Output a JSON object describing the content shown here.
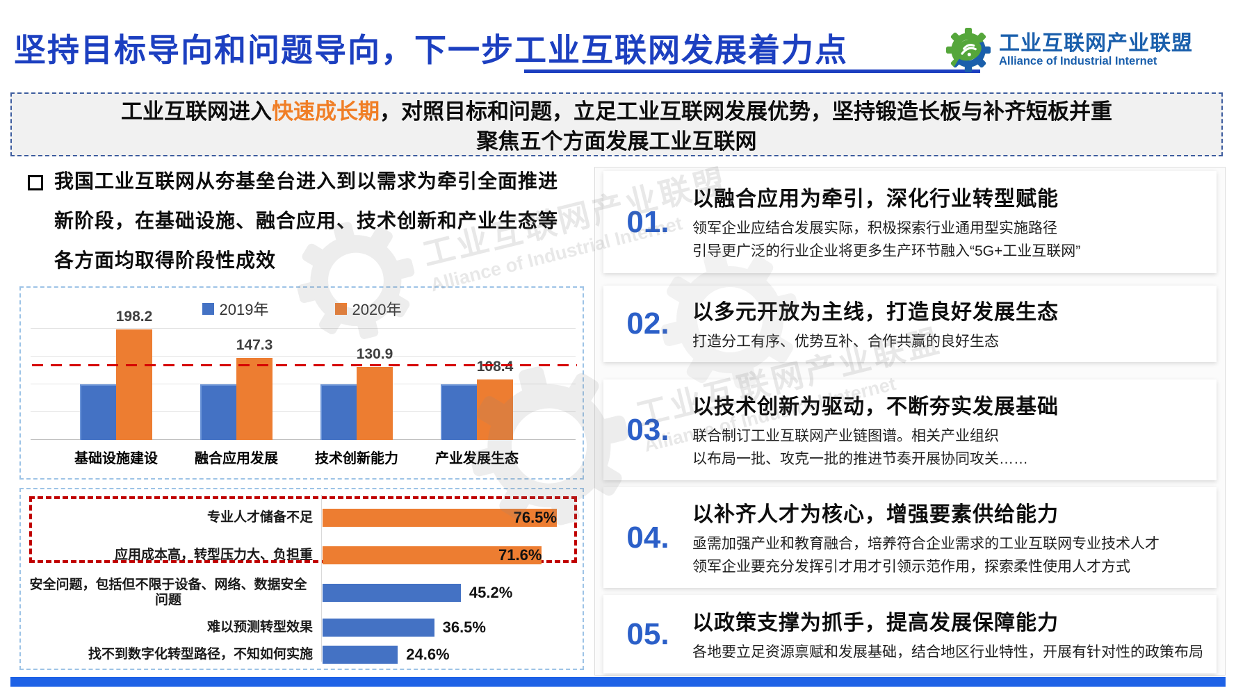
{
  "title": {
    "text": "坚持目标导向和问题导向，下一步工业互联网发展着力点"
  },
  "logo": {
    "zh": "工业互联网产业联盟",
    "en": "Alliance of Industrial Internet"
  },
  "banner": {
    "line1_prefix": "工业互联网进入",
    "highlight": "快速成长期",
    "line1_suffix": "，对照目标和问题，立足工业互联网发展优势，坚持锻造长板与补齐短板并重",
    "line2": "聚焦五个方面发展工业互联网"
  },
  "left": {
    "bullet": {
      "line1": "我国工业互联网从夯基垒台进入到以需求为牵引全面推进",
      "line2": "新阶段，在基础设施、融合应用、技术创新和产业生态等",
      "line3": "各方面均取得阶段性成效"
    }
  },
  "chart_data": [
    {
      "type": "bar",
      "categories": [
        "基础设施建设",
        "融合应用发展",
        "技术创新能力",
        "产业发展生态"
      ],
      "series": [
        {
          "name": "2019年",
          "values": [
            100,
            100,
            100,
            100
          ],
          "color": "#4472C4"
        },
        {
          "name": "2020年",
          "values": [
            198.2,
            147.3,
            130.9,
            108.4
          ],
          "color": "#ED7D31"
        }
      ],
      "data_labels": [
        "198.2",
        "147.3",
        "130.9",
        "108.4"
      ],
      "reference_line": {
        "value": 133,
        "color": "#D50000",
        "style": "dashed"
      },
      "ylim": [
        0,
        200
      ],
      "grid_step": 50,
      "legend_position": "top"
    },
    {
      "type": "bar",
      "orientation": "horizontal",
      "categories": [
        "专业人才储备不足",
        "应用成本高，转型压力大、负担重",
        "安全问题，包括但不限于设备、网络、数据安全问题",
        "难以预测转型效果",
        "找不到数字化转型路径，不知如何实施"
      ],
      "values": [
        76.5,
        71.6,
        45.2,
        36.5,
        24.6
      ],
      "value_labels": [
        "76.5%",
        "71.6%",
        "45.2%",
        "36.5%",
        "24.6%"
      ],
      "bar_colors": [
        "#ED7D31",
        "#ED7D31",
        "#4472C4",
        "#4472C4",
        "#4472C4"
      ],
      "highlight_box": "red dashed rectangle around top two bars",
      "xlim": [
        0,
        85
      ]
    }
  ],
  "right": {
    "items": [
      {
        "num": "01.",
        "heading": "以融合应用为牵引，深化行业转型赋能",
        "lines": [
          "领军企业应结合发展实际，积极探索行业通用型实施路径",
          "引导更广泛的行业企业将更多生产环节融入“5G+工业互联网”"
        ]
      },
      {
        "num": "02.",
        "heading": "以多元开放为主线，打造良好发展生态",
        "lines": [
          "打造分工有序、优势互补、合作共赢的良好生态"
        ]
      },
      {
        "num": "03.",
        "heading": "以技术创新为驱动，不断夯实发展基础",
        "lines": [
          "联合制订工业互联网产业链图谱。相关产业组织",
          "以布局一批、攻克一批的推进节奏开展协同攻关……"
        ]
      },
      {
        "num": "04.",
        "heading": "以补齐人才为核心，增强要素供给能力",
        "lines": [
          "亟需加强产业和教育融合，培养符合企业需求的工业互联网专业技术人才",
          "领军企业要充分发挥引才用才引领示范作用，探索柔性使用人才方式"
        ]
      },
      {
        "num": "05.",
        "heading": "以政策支撑为抓手，提高发展保障能力",
        "lines": [
          "各地要立足资源禀赋和发展基础，结合地区行业特性，开展有针对性的政策布局"
        ]
      }
    ]
  },
  "watermark": {
    "zh": "工业互联网产业联盟",
    "en": "Alliance of Industrial Internet"
  },
  "colors": {
    "title_blue": "#1C3FC0",
    "logo_blue": "#1A5FAC",
    "bar_blue": "#4472C4",
    "bar_orange": "#ED7D31",
    "highlight_orange": "#F07E26",
    "number_blue": "#2B5FC8",
    "reference_red": "#D50000",
    "highlight_rect_red": "#C00000",
    "bottom_strip_blue": "#1E62E6"
  }
}
